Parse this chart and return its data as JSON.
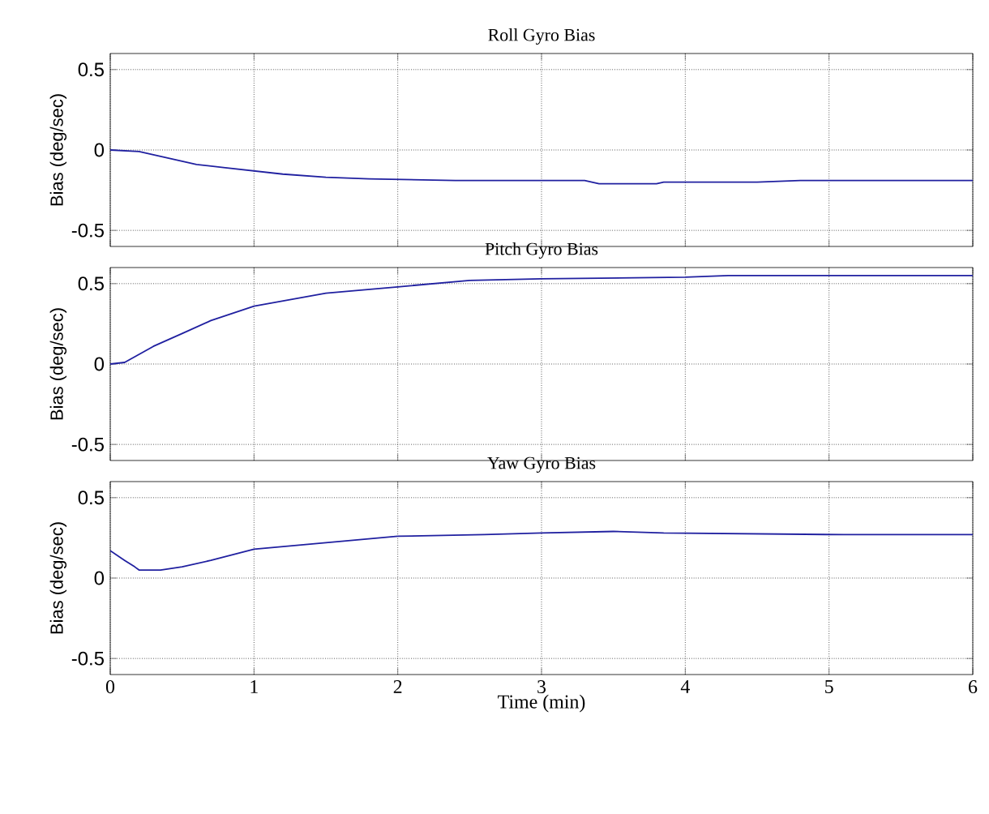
{
  "chart_data": [
    {
      "type": "line",
      "title": "Roll Gyro Bias",
      "ylabel": "Bias (deg/sec)",
      "xlim": [
        0,
        6
      ],
      "ylim": [
        -0.6,
        0.6
      ],
      "xticks": [
        0,
        1,
        2,
        3,
        4,
        5,
        6
      ],
      "yticks": [
        -0.5,
        0,
        0.5
      ],
      "grid": true,
      "tick_labels": "y",
      "x": [
        0,
        0.2,
        0.4,
        0.6,
        0.8,
        1.0,
        1.2,
        1.5,
        1.8,
        2.4,
        3.3,
        3.4,
        3.8,
        3.85,
        4.5,
        4.8,
        6
      ],
      "series": [
        {
          "color": "#2020a0",
          "values": [
            0,
            -0.01,
            -0.05,
            -0.09,
            -0.11,
            -0.13,
            -0.15,
            -0.17,
            -0.18,
            -0.19,
            -0.19,
            -0.21,
            -0.21,
            -0.2,
            -0.2,
            -0.19,
            -0.19
          ]
        }
      ]
    },
    {
      "type": "line",
      "title": "Pitch Gyro Bias",
      "ylabel": "Bias (deg/sec)",
      "xlim": [
        0,
        6
      ],
      "ylim": [
        -0.6,
        0.6
      ],
      "xticks": [
        0,
        1,
        2,
        3,
        4,
        5,
        6
      ],
      "yticks": [
        -0.5,
        0,
        0.5
      ],
      "grid": true,
      "tick_labels": "y",
      "x": [
        0,
        0.1,
        0.3,
        0.5,
        0.7,
        1.0,
        1.5,
        2.0,
        2.5,
        3.0,
        4.0,
        4.3,
        6
      ],
      "series": [
        {
          "color": "#2020a0",
          "values": [
            0,
            0.01,
            0.11,
            0.19,
            0.27,
            0.36,
            0.44,
            0.48,
            0.52,
            0.53,
            0.54,
            0.55,
            0.55
          ]
        }
      ]
    },
    {
      "type": "line",
      "title": "Yaw Gyro Bias",
      "xlabel": "Time (min)",
      "ylabel": "Bias (deg/sec)",
      "xlim": [
        0,
        6
      ],
      "ylim": [
        -0.6,
        0.6
      ],
      "xticks": [
        0,
        1,
        2,
        3,
        4,
        5,
        6
      ],
      "yticks": [
        -0.5,
        0,
        0.5
      ],
      "grid": true,
      "x": [
        0,
        0.1,
        0.17,
        0.2,
        0.35,
        0.5,
        0.7,
        1.0,
        1.5,
        2.0,
        2.6,
        3.0,
        3.5,
        3.85,
        5.1,
        6
      ],
      "series": [
        {
          "color": "#2020a0",
          "values": [
            0.17,
            0.11,
            0.07,
            0.05,
            0.05,
            0.07,
            0.11,
            0.18,
            0.22,
            0.26,
            0.27,
            0.28,
            0.29,
            0.28,
            0.27,
            0.27
          ]
        }
      ]
    }
  ]
}
